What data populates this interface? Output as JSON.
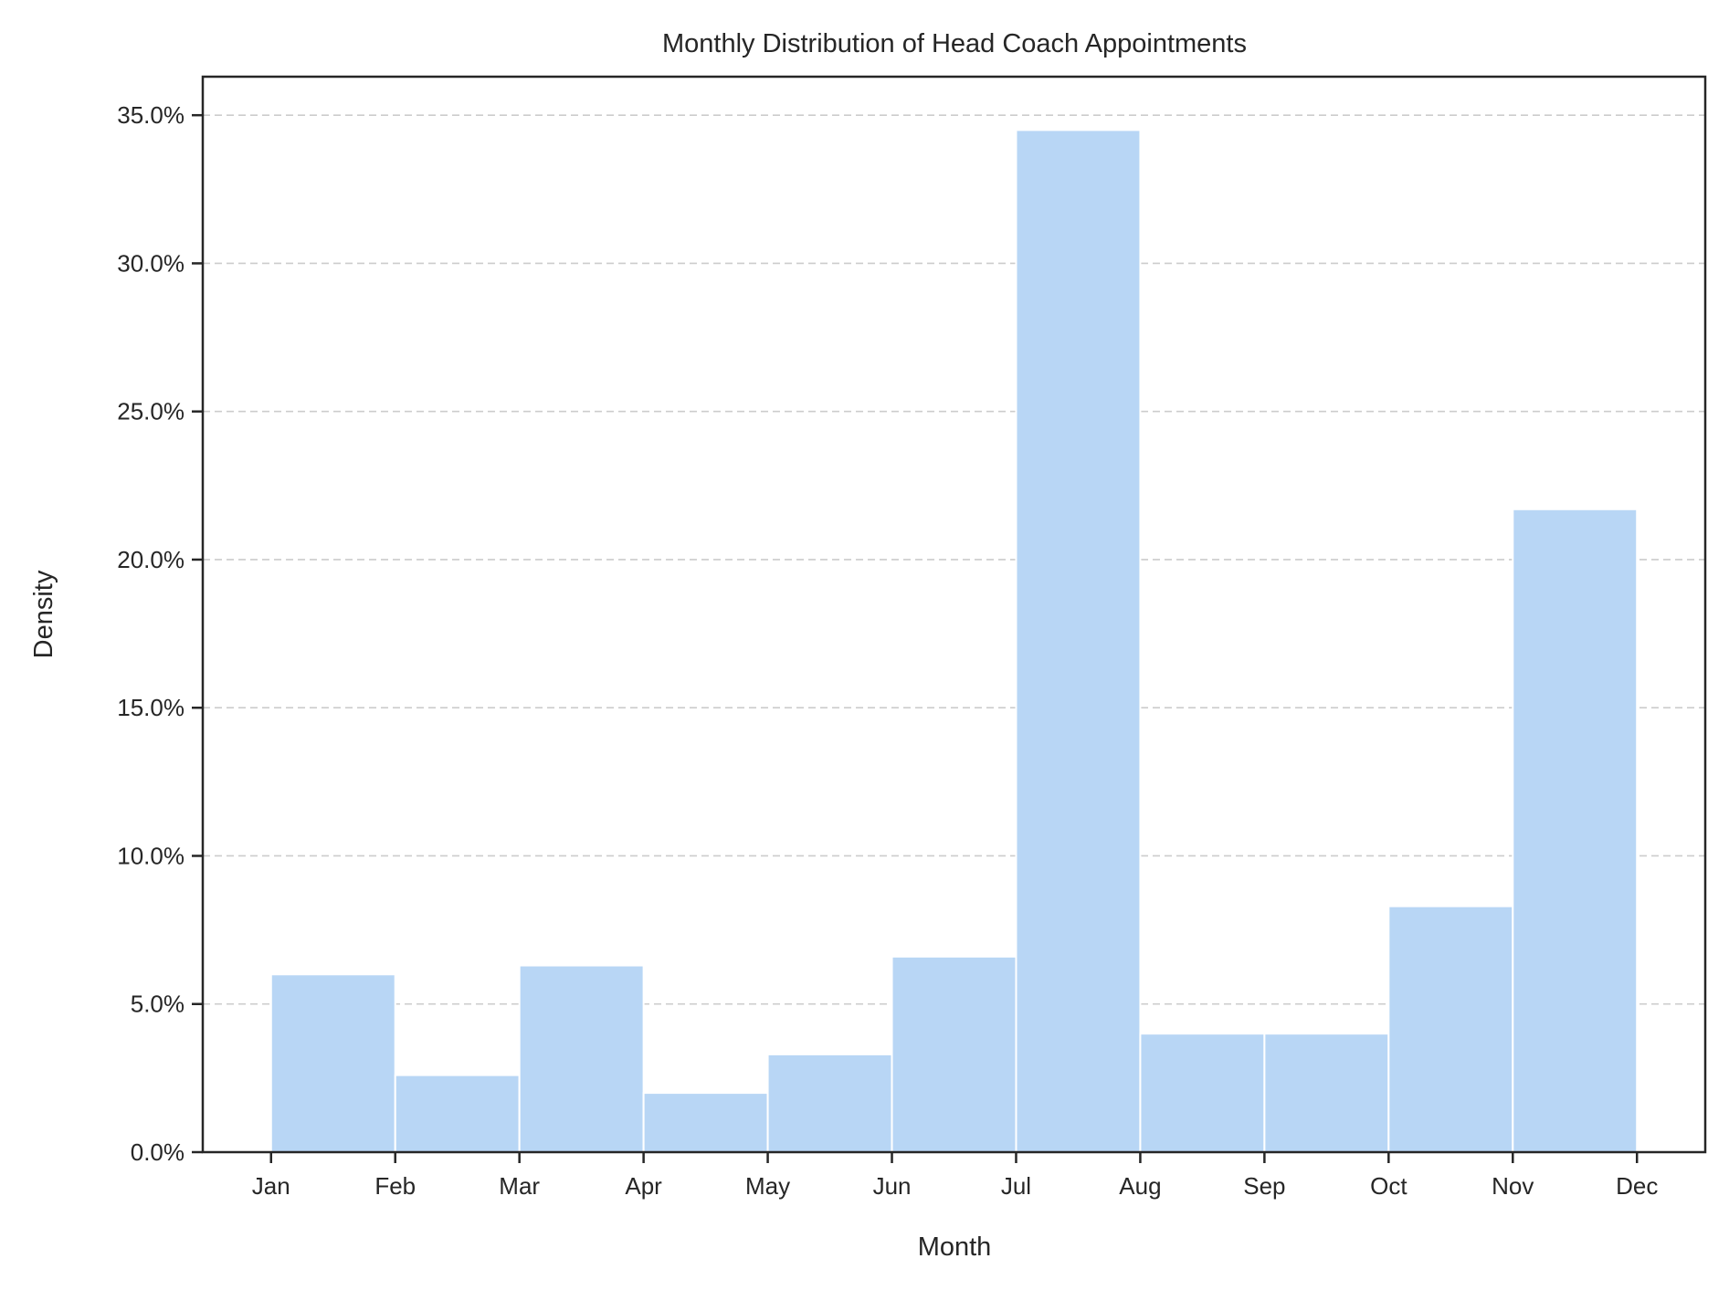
{
  "chart_data": {
    "type": "bar",
    "title": "Monthly Distribution of Head Coach Appointments",
    "xlabel": "Month",
    "ylabel": "Density",
    "categories": [
      "Jan",
      "Feb",
      "Mar",
      "Apr",
      "May",
      "Jun",
      "Jul",
      "Aug",
      "Sep",
      "Oct",
      "Nov",
      "Dec"
    ],
    "bins": [
      {
        "from": 1,
        "to": 2,
        "value": 6.0
      },
      {
        "from": 2,
        "to": 3,
        "value": 2.6
      },
      {
        "from": 3,
        "to": 4,
        "value": 6.3
      },
      {
        "from": 4,
        "to": 5,
        "value": 2.0
      },
      {
        "from": 5,
        "to": 6,
        "value": 3.3
      },
      {
        "from": 6,
        "to": 7,
        "value": 6.6
      },
      {
        "from": 7,
        "to": 8,
        "value": 34.5
      },
      {
        "from": 8,
        "to": 9,
        "value": 4.0
      },
      {
        "from": 9,
        "to": 10,
        "value": 4.0
      },
      {
        "from": 10,
        "to": 11,
        "value": 8.3
      },
      {
        "from": 11,
        "to": 12,
        "value": 21.7
      }
    ],
    "xlim": [
      0.45,
      12.55
    ],
    "ylim": [
      0,
      36.3
    ],
    "yticks": [
      0,
      5,
      10,
      15,
      20,
      25,
      30,
      35
    ],
    "ytick_labels": [
      "0.0%",
      "5.0%",
      "10.0%",
      "15.0%",
      "20.0%",
      "25.0%",
      "30.0%",
      "35.0%"
    ],
    "grid": "y-dashed",
    "colors": {
      "bar": "#b8d6f5",
      "bar_edge": "#ffffff",
      "grid": "#cccccc",
      "axis": "#262626"
    }
  }
}
